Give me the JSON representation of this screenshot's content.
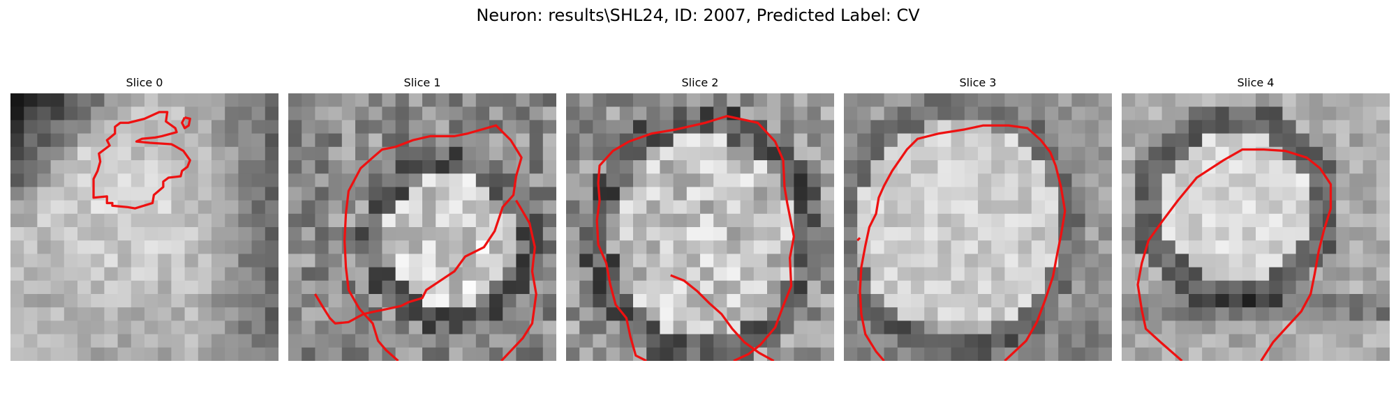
{
  "figure": {
    "title": "Neuron: results\\SHL24, ID: 2007, Predicted Label: CV",
    "contour_color": "#ee1111"
  },
  "panels": [
    {
      "title": "Slice 0",
      "seed": 11,
      "contours": [
        [
          [
            6.2,
            7.2
          ],
          [
            6.2,
            7.8
          ],
          [
            7.2,
            7.7
          ],
          [
            7.2,
            8.2
          ],
          [
            7.6,
            8.2
          ],
          [
            7.6,
            8.4
          ],
          [
            8.7,
            8.5
          ],
          [
            9.3,
            8.6
          ],
          [
            10.6,
            8.2
          ],
          [
            10.7,
            7.6
          ],
          [
            11.4,
            7.0
          ],
          [
            11.4,
            6.6
          ],
          [
            11.8,
            6.3
          ],
          [
            12.7,
            6.2
          ],
          [
            12.8,
            5.8
          ],
          [
            13.2,
            5.5
          ],
          [
            13.4,
            5.0
          ],
          [
            12.9,
            4.3
          ],
          [
            12.2,
            3.9
          ],
          [
            12.0,
            3.8
          ],
          [
            10.4,
            3.7
          ],
          [
            9.4,
            3.6
          ],
          [
            9.8,
            3.4
          ],
          [
            10.8,
            3.3
          ],
          [
            11.3,
            3.2
          ],
          [
            12.4,
            2.9
          ],
          [
            12.3,
            2.6
          ],
          [
            11.6,
            2.1
          ],
          [
            11.7,
            1.4
          ],
          [
            11.1,
            1.4
          ],
          [
            10.0,
            1.9
          ],
          [
            8.8,
            2.2
          ],
          [
            8.2,
            2.2
          ],
          [
            7.8,
            2.5
          ],
          [
            7.8,
            3.0
          ],
          [
            7.2,
            3.5
          ],
          [
            7.4,
            3.9
          ],
          [
            6.6,
            4.5
          ],
          [
            6.7,
            5.1
          ],
          [
            6.5,
            5.8
          ],
          [
            6.2,
            6.4
          ],
          [
            6.2,
            7.2
          ]
        ],
        [
          [
            13.0,
            1.8
          ],
          [
            12.8,
            2.2
          ],
          [
            13.0,
            2.6
          ],
          [
            13.3,
            2.4
          ],
          [
            13.4,
            1.9
          ],
          [
            13.0,
            1.8
          ]
        ]
      ]
    },
    {
      "title": "Slice 1",
      "seed": 23,
      "contours": [
        [
          [
            8.2,
            20.0
          ],
          [
            7.3,
            19.2
          ],
          [
            6.7,
            18.5
          ],
          [
            6.3,
            17.2
          ],
          [
            5.3,
            16.1
          ],
          [
            4.5,
            14.7
          ],
          [
            4.3,
            13.0
          ],
          [
            4.2,
            11.0
          ],
          [
            4.3,
            9.0
          ],
          [
            4.5,
            7.3
          ],
          [
            5.4,
            5.6
          ],
          [
            6.3,
            4.8
          ],
          [
            7.0,
            4.2
          ],
          [
            8.0,
            4.0
          ],
          [
            9.3,
            3.5
          ],
          [
            10.6,
            3.2
          ],
          [
            12.4,
            3.2
          ],
          [
            13.4,
            3.0
          ],
          [
            15.5,
            2.4
          ],
          [
            16.6,
            3.5
          ],
          [
            17.4,
            4.8
          ],
          [
            17.0,
            6.2
          ],
          [
            16.8,
            7.6
          ],
          [
            16.0,
            8.5
          ],
          [
            15.4,
            10.3
          ],
          [
            14.6,
            11.5
          ],
          [
            13.2,
            12.2
          ],
          [
            12.4,
            13.3
          ],
          [
            10.3,
            14.7
          ],
          [
            10.0,
            15.3
          ],
          [
            9.0,
            15.6
          ],
          [
            8.4,
            15.9
          ],
          [
            7.0,
            16.2
          ],
          [
            6.5,
            16.3
          ],
          [
            5.6,
            16.5
          ],
          [
            4.5,
            17.1
          ],
          [
            3.5,
            17.2
          ],
          [
            3.1,
            16.8
          ],
          [
            2.6,
            16.0
          ],
          [
            2.0,
            15.0
          ]
        ],
        [
          [
            15.9,
            20.0
          ],
          [
            17.5,
            18.3
          ],
          [
            18.2,
            17.2
          ],
          [
            18.5,
            15.0
          ],
          [
            18.2,
            13.3
          ],
          [
            18.4,
            11.5
          ],
          [
            18.0,
            9.7
          ],
          [
            17.3,
            8.5
          ],
          [
            17.0,
            8.0
          ]
        ]
      ]
    },
    {
      "title": "Slice 2",
      "seed": 37,
      "contours": [
        [
          [
            6.0,
            20.0
          ],
          [
            5.2,
            19.6
          ],
          [
            4.8,
            18.2
          ],
          [
            4.5,
            16.8
          ],
          [
            3.7,
            15.8
          ],
          [
            3.3,
            14.3
          ],
          [
            3.0,
            12.7
          ],
          [
            2.4,
            11.3
          ],
          [
            2.3,
            9.5
          ],
          [
            2.5,
            8.0
          ],
          [
            2.4,
            6.7
          ],
          [
            2.5,
            5.4
          ],
          [
            3.5,
            4.3
          ],
          [
            4.7,
            3.6
          ],
          [
            6.4,
            3.0
          ],
          [
            8.2,
            2.7
          ],
          [
            10.4,
            2.2
          ],
          [
            12.0,
            1.7
          ],
          [
            14.3,
            2.2
          ],
          [
            15.6,
            3.6
          ],
          [
            16.2,
            5.0
          ],
          [
            16.3,
            7.0
          ],
          [
            16.5,
            8.2
          ],
          [
            17.0,
            10.7
          ],
          [
            16.7,
            12.3
          ],
          [
            16.8,
            14.4
          ],
          [
            16.2,
            15.9
          ],
          [
            15.6,
            17.5
          ],
          [
            14.5,
            18.8
          ],
          [
            13.6,
            19.5
          ],
          [
            12.5,
            20.0
          ]
        ],
        [
          [
            15.5,
            20.0
          ],
          [
            14.4,
            19.4
          ],
          [
            13.3,
            18.6
          ],
          [
            12.4,
            17.6
          ],
          [
            11.6,
            16.5
          ],
          [
            10.7,
            15.7
          ],
          [
            9.8,
            14.8
          ],
          [
            8.8,
            14.0
          ],
          [
            7.8,
            13.6
          ]
        ]
      ]
    },
    {
      "title": "Slice 3",
      "seed": 53,
      "contours": [
        [
          [
            3.0,
            20.0
          ],
          [
            2.4,
            19.3
          ],
          [
            1.6,
            18.0
          ],
          [
            1.3,
            16.5
          ],
          [
            1.2,
            14.8
          ],
          [
            1.3,
            13.0
          ],
          [
            1.6,
            11.4
          ],
          [
            1.9,
            10.0
          ],
          [
            2.4,
            9.0
          ],
          [
            2.6,
            7.8
          ],
          [
            3.0,
            6.9
          ],
          [
            3.6,
            5.8
          ],
          [
            4.7,
            4.2
          ],
          [
            5.5,
            3.4
          ],
          [
            7.1,
            3.0
          ],
          [
            9.0,
            2.7
          ],
          [
            10.4,
            2.4
          ],
          [
            12.3,
            2.4
          ],
          [
            13.7,
            2.6
          ],
          [
            14.7,
            3.5
          ],
          [
            15.4,
            4.4
          ],
          [
            15.8,
            5.4
          ],
          [
            16.2,
            7.0
          ],
          [
            16.5,
            8.8
          ],
          [
            16.2,
            10.6
          ],
          [
            15.9,
            12.1
          ],
          [
            15.6,
            13.7
          ],
          [
            15.0,
            15.5
          ],
          [
            14.4,
            17.1
          ],
          [
            13.6,
            18.5
          ],
          [
            12.0,
            20.0
          ]
        ],
        [
          [
            1.0,
            11.0
          ],
          [
            1.2,
            10.8
          ]
        ]
      ]
    },
    {
      "title": "Slice 4",
      "seed": 71,
      "contours": [
        [
          [
            4.5,
            20.0
          ],
          [
            2.9,
            18.6
          ],
          [
            1.8,
            17.6
          ],
          [
            1.5,
            16.2
          ],
          [
            1.2,
            14.3
          ],
          [
            1.5,
            12.7
          ],
          [
            2.0,
            11.0
          ],
          [
            3.0,
            9.6
          ],
          [
            4.2,
            8.0
          ],
          [
            5.6,
            6.3
          ],
          [
            7.6,
            5.0
          ],
          [
            9.0,
            4.2
          ],
          [
            10.6,
            4.2
          ],
          [
            12.2,
            4.3
          ],
          [
            13.8,
            4.8
          ],
          [
            14.8,
            5.6
          ],
          [
            15.6,
            6.8
          ],
          [
            15.6,
            8.6
          ],
          [
            15.1,
            10.2
          ],
          [
            14.7,
            11.8
          ],
          [
            14.4,
            13.5
          ],
          [
            14.1,
            15.0
          ],
          [
            13.4,
            16.3
          ],
          [
            12.3,
            17.5
          ],
          [
            11.3,
            18.6
          ],
          [
            10.4,
            20.0
          ]
        ]
      ]
    }
  ]
}
